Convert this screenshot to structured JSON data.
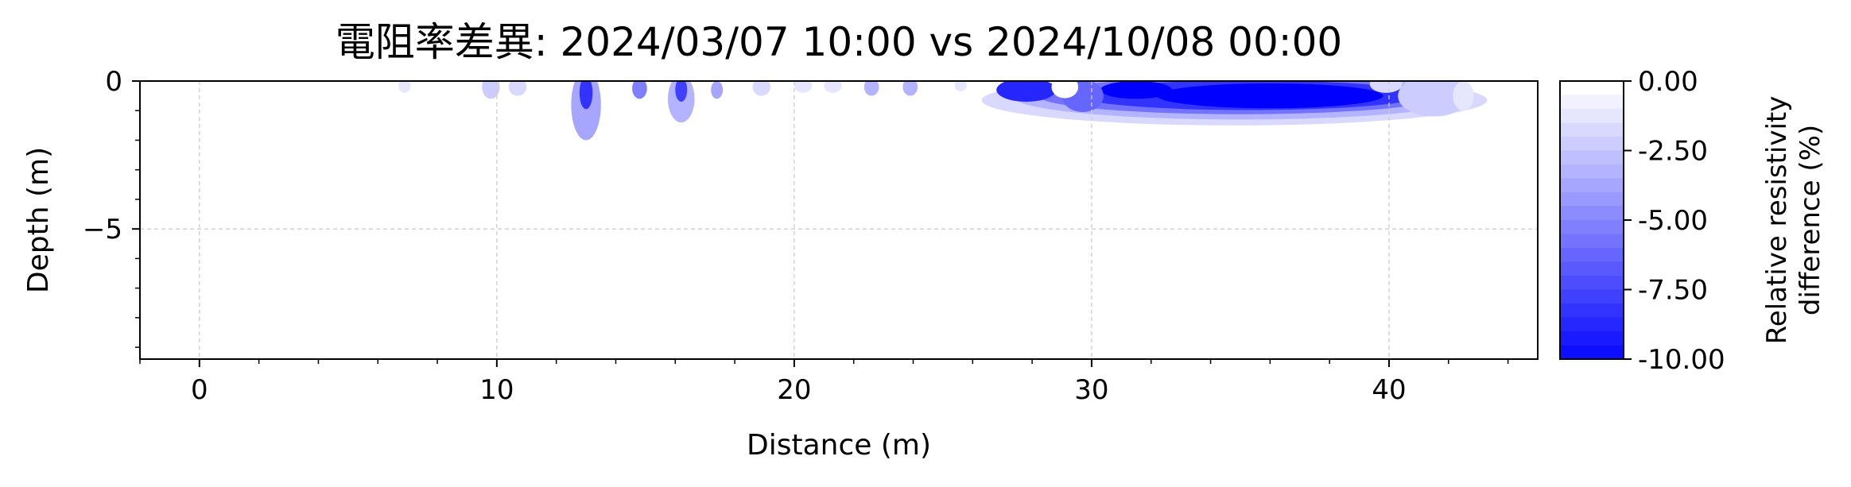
{
  "chart_data": {
    "type": "heatmap",
    "title": "電阻率差異: 2024/03/07 10:00 vs 2024/10/08 00:00",
    "xlabel": "Distance (m)",
    "ylabel": "Depth (m)",
    "xlim": [
      -2,
      45
    ],
    "ylim": [
      -9.4,
      0
    ],
    "x_ticks": [
      0,
      10,
      20,
      30,
      40
    ],
    "x_tick_labels": [
      "0",
      "10",
      "20",
      "30",
      "40"
    ],
    "y_ticks": [
      0,
      -5
    ],
    "y_tick_labels": [
      "0",
      "−5"
    ],
    "grid": true,
    "colorbar": {
      "label_line1": "Relative resistivity",
      "label_line2": "difference (%)",
      "range": [
        -10,
        0
      ],
      "levels": 21,
      "ticks": [
        0,
        -2.5,
        -5,
        -7.5,
        -10
      ],
      "tick_labels": [
        "0.00",
        "-2.50",
        "-5.00",
        "-7.50",
        "-10.00"
      ],
      "color_min": "#0000ff",
      "color_max": "#ffffff"
    },
    "anomalies": [
      {
        "x": 6.9,
        "depth": 0.15,
        "rx": 0.2,
        "ry": 0.25,
        "value": -1.0
      },
      {
        "x": 9.8,
        "depth": 0.2,
        "rx": 0.3,
        "ry": 0.4,
        "value": -2.0
      },
      {
        "x": 10.7,
        "depth": 0.2,
        "rx": 0.3,
        "ry": 0.3,
        "value": -1.5
      },
      {
        "x": 13.0,
        "depth": 0.8,
        "rx": 0.5,
        "ry": 1.2,
        "value": -3.5
      },
      {
        "x": 13.0,
        "depth": 0.4,
        "rx": 0.22,
        "ry": 0.55,
        "value": -8.0
      },
      {
        "x": 14.8,
        "depth": 0.25,
        "rx": 0.25,
        "ry": 0.35,
        "value": -5.0
      },
      {
        "x": 16.2,
        "depth": 0.6,
        "rx": 0.45,
        "ry": 0.8,
        "value": -3.0
      },
      {
        "x": 16.2,
        "depth": 0.3,
        "rx": 0.2,
        "ry": 0.4,
        "value": -7.5
      },
      {
        "x": 17.4,
        "depth": 0.3,
        "rx": 0.2,
        "ry": 0.3,
        "value": -3.5
      },
      {
        "x": 18.9,
        "depth": 0.2,
        "rx": 0.3,
        "ry": 0.3,
        "value": -1.5
      },
      {
        "x": 20.3,
        "depth": 0.15,
        "rx": 0.3,
        "ry": 0.25,
        "value": -1.0
      },
      {
        "x": 21.3,
        "depth": 0.15,
        "rx": 0.3,
        "ry": 0.25,
        "value": -1.0
      },
      {
        "x": 22.6,
        "depth": 0.2,
        "rx": 0.25,
        "ry": 0.3,
        "value": -3.0
      },
      {
        "x": 23.9,
        "depth": 0.2,
        "rx": 0.25,
        "ry": 0.3,
        "value": -3.0
      },
      {
        "x": 25.6,
        "depth": 0.15,
        "rx": 0.2,
        "ry": 0.2,
        "value": -1.0
      },
      {
        "x": 34.8,
        "depth": 0.65,
        "rx": 8.5,
        "ry": 0.85,
        "value": -1.5
      },
      {
        "x": 35.0,
        "depth": 0.55,
        "rx": 7.6,
        "ry": 0.75,
        "value": -3.0
      },
      {
        "x": 35.0,
        "depth": 0.5,
        "rx": 6.8,
        "ry": 0.62,
        "value": -5.5
      },
      {
        "x": 35.3,
        "depth": 0.48,
        "rx": 5.8,
        "ry": 0.5,
        "value": -8.0
      },
      {
        "x": 36.0,
        "depth": 0.5,
        "rx": 3.8,
        "ry": 0.42,
        "value": -10.0
      },
      {
        "x": 31.5,
        "depth": 0.3,
        "rx": 1.2,
        "ry": 0.3,
        "value": -10.0
      },
      {
        "x": 27.8,
        "depth": 0.3,
        "rx": 1.0,
        "ry": 0.4,
        "value": -8.5
      },
      {
        "x": 29.7,
        "depth": 0.5,
        "rx": 0.7,
        "ry": 0.55,
        "value": -6.0
      },
      {
        "x": 29.1,
        "depth": 0.2,
        "rx": 0.45,
        "ry": 0.38,
        "value": 0.0
      },
      {
        "x": 41.5,
        "depth": 0.5,
        "rx": 1.2,
        "ry": 0.7,
        "value": -2.0
      },
      {
        "x": 42.5,
        "depth": 0.5,
        "rx": 0.35,
        "ry": 0.5,
        "value": -1.0
      },
      {
        "x": 39.9,
        "depth": 0.1,
        "rx": 0.55,
        "ry": 0.3,
        "value": -1.5
      }
    ]
  }
}
